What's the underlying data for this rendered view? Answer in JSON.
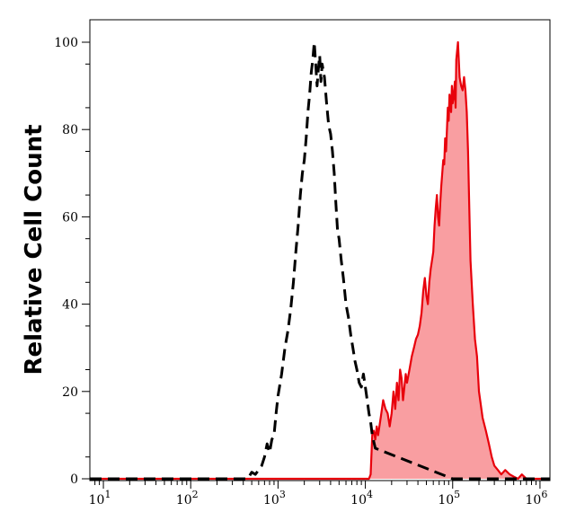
{
  "chart_data": {
    "type": "area",
    "title": "",
    "xlabel": "",
    "ylabel": "Relative Cell Count",
    "x_scale": "log",
    "xlim": [
      7,
      1300000
    ],
    "ylim": [
      0,
      100
    ],
    "x_ticks": [
      {
        "value": 10,
        "base": "10",
        "exp": "1"
      },
      {
        "value": 100,
        "base": "10",
        "exp": "2"
      },
      {
        "value": 1000,
        "base": "10",
        "exp": "3"
      },
      {
        "value": 10000,
        "base": "10",
        "exp": "4"
      },
      {
        "value": 100000,
        "base": "10",
        "exp": "5"
      },
      {
        "value": 1000000,
        "base": "10",
        "exp": "6"
      }
    ],
    "y_ticks": [
      {
        "value": 0,
        "label": "0"
      },
      {
        "value": 20,
        "label": "20"
      },
      {
        "value": 40,
        "label": "40"
      },
      {
        "value": 60,
        "label": "60"
      },
      {
        "value": 80,
        "label": "80"
      },
      {
        "value": 100,
        "label": "100"
      }
    ],
    "grid": false,
    "legend": "none",
    "series": [
      {
        "style": "dashed",
        "stroke": "#000000",
        "fill": "none",
        "x": [
          7,
          100,
          400,
          450,
          500,
          550,
          600,
          650,
          700,
          750,
          800,
          850,
          900,
          950,
          1000,
          1100,
          1200,
          1300,
          1400,
          1500,
          1600,
          1700,
          1800,
          1900,
          2000,
          2100,
          2200,
          2300,
          2400,
          2500,
          2600,
          2700,
          2800,
          2900,
          3000,
          3100,
          3200,
          3400,
          3600,
          3800,
          4000,
          4200,
          4400,
          4600,
          4800,
          5000,
          5300,
          5600,
          6000,
          6400,
          6800,
          7200,
          7600,
          8000,
          8500,
          9000,
          9500,
          10000,
          10500,
          11000,
          11500,
          12000,
          13000,
          100000,
          1300000
        ],
        "y": [
          0,
          0,
          0,
          0,
          1.5,
          1,
          2,
          3,
          5,
          8,
          6,
          9,
          10,
          15,
          19,
          24,
          30,
          34,
          39,
          45,
          52,
          58,
          65,
          70,
          73,
          78,
          84,
          88,
          93,
          96,
          100,
          95,
          90,
          94,
          97,
          91,
          95,
          92,
          86,
          81,
          79,
          75,
          70,
          63,
          57,
          55,
          50,
          46,
          40,
          37,
          33,
          30,
          27,
          25,
          22,
          21,
          24,
          21,
          18,
          15,
          13,
          10,
          7,
          0,
          0
        ]
      },
      {
        "style": "solid-filled",
        "stroke": "#e8000b",
        "fill": "#f99ea1",
        "x": [
          7,
          1000,
          10000,
          11000,
          11500,
          12000,
          12500,
          13000,
          13500,
          14000,
          15000,
          16000,
          17000,
          18000,
          19000,
          20000,
          21000,
          22000,
          23000,
          24000,
          25000,
          26000,
          27000,
          28000,
          29000,
          30000,
          32000,
          34000,
          36000,
          38000,
          40000,
          42000,
          44000,
          46000,
          48000,
          50000,
          52000,
          54000,
          56000,
          58000,
          60000,
          62000,
          64000,
          66000,
          68000,
          70000,
          72000,
          74000,
          76000,
          78000,
          80000,
          82000,
          84000,
          86000,
          88000,
          90000,
          92000,
          94000,
          96000,
          98000,
          100000,
          102000,
          104000,
          106000,
          108000,
          110000,
          115000,
          120000,
          125000,
          130000,
          135000,
          140000,
          145000,
          150000,
          155000,
          160000,
          170000,
          180000,
          190000,
          200000,
          220000,
          240000,
          260000,
          280000,
          300000,
          330000,
          360000,
          400000,
          450000,
          500000,
          560000,
          620000,
          700000,
          800000,
          900000,
          1000000,
          1300000
        ],
        "y": [
          0,
          0,
          0,
          0,
          1,
          10,
          11,
          9,
          12,
          10,
          14,
          18,
          16,
          15,
          12,
          15,
          20,
          16,
          22,
          18,
          25,
          23,
          18,
          21,
          24,
          22,
          25,
          28,
          30,
          32,
          33,
          35,
          38,
          43,
          46,
          42,
          40,
          45,
          48,
          50,
          52,
          58,
          62,
          65,
          60,
          58,
          63,
          67,
          70,
          73,
          72,
          78,
          75,
          80,
          85,
          82,
          88,
          86,
          84,
          90,
          86,
          87,
          89,
          91,
          85,
          96,
          100,
          92,
          90,
          89,
          92,
          89,
          84,
          75,
          62,
          50,
          40,
          32,
          28,
          20,
          14,
          11,
          8,
          5,
          3,
          2,
          1,
          2,
          1,
          0.5,
          0,
          1,
          0,
          0,
          0,
          0,
          0
        ]
      }
    ]
  }
}
